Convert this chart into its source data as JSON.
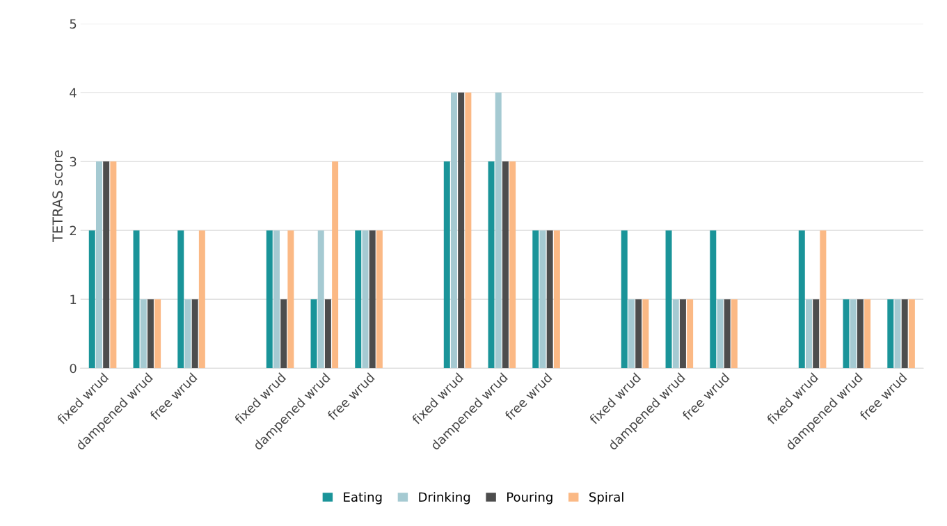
{
  "chart_data": {
    "type": "bar",
    "ylabel": "TETRAS score",
    "ylim": [
      0,
      5
    ],
    "yticks": [
      0,
      1,
      2,
      3,
      4,
      5
    ],
    "grid": "y",
    "legend": "bottom",
    "categories": [
      "fixed wrud",
      "dampened wrud",
      "free wrud",
      null,
      "fixed wrud",
      "dampened wrud",
      "free wrud",
      null,
      "fixed wrud",
      "dampened wrud",
      "free wrud",
      null,
      "fixed wrud",
      "dampened wrud",
      "free wrud",
      null,
      "fixed wrud",
      "dampened wrud",
      "free wrud"
    ],
    "series": [
      {
        "name": "Eating",
        "color": "#1a9499",
        "values": [
          2,
          2,
          2,
          null,
          2,
          1,
          2,
          null,
          3,
          3,
          2,
          null,
          2,
          2,
          2,
          null,
          2,
          1,
          1
        ]
      },
      {
        "name": "Drinking",
        "color": "#a5cad2",
        "values": [
          3,
          1,
          1,
          null,
          2,
          2,
          2,
          null,
          4,
          4,
          2,
          null,
          1,
          1,
          1,
          null,
          1,
          1,
          1
        ]
      },
      {
        "name": "Pouring",
        "color": "#4d4d4d",
        "values": [
          3,
          1,
          1,
          null,
          1,
          1,
          2,
          null,
          4,
          3,
          2,
          null,
          1,
          1,
          1,
          null,
          1,
          1,
          1
        ]
      },
      {
        "name": "Spiral",
        "color": "#fbb985",
        "values": [
          3,
          1,
          2,
          null,
          2,
          3,
          2,
          null,
          4,
          3,
          2,
          null,
          1,
          1,
          1,
          null,
          2,
          1,
          1
        ]
      }
    ]
  }
}
